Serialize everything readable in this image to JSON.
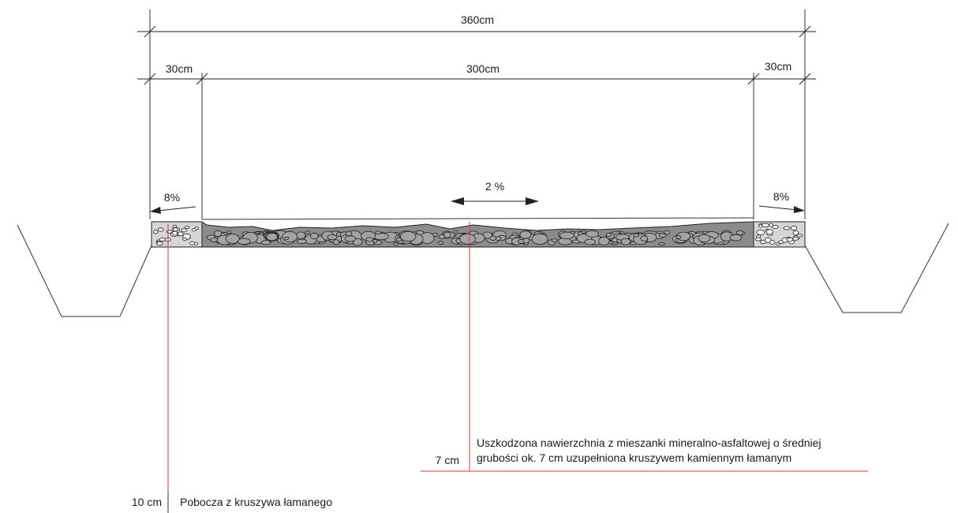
{
  "dimensions": {
    "total": "360cm",
    "left_shoulder": "30cm",
    "carriageway": "300cm",
    "right_shoulder": "30cm"
  },
  "slopes": {
    "left": "8%",
    "center": "2 %",
    "right": "8%"
  },
  "annotations": {
    "surface_thickness": "7 cm",
    "surface_line1": "Uszkodzona nawierzchnia z mieszanki mineralno-asfaltowej o średniej",
    "surface_line2": "grubości ok. 7 cm uzupełniona kruszywem kamiennym łamanym",
    "shoulder_thickness": "10 cm",
    "shoulder_desc": "Pobocza z kruszywa łamanego"
  },
  "colors": {
    "asphalt": "#8c8c8c",
    "shoulder": "#d6d6d6",
    "leader": "#d93a3a",
    "line": "#222222"
  }
}
